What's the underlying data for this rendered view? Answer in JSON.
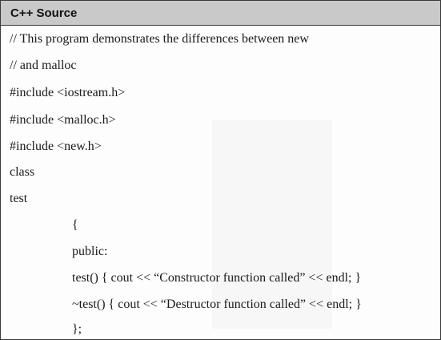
{
  "header": {
    "title": "C++ Source"
  },
  "code": {
    "lines": [
      "// This program demonstrates the differences between new",
      "// and malloc",
      "#include <iostream.h>",
      "#include <malloc.h>",
      "#include <new.h>",
      "class",
      "test",
      "{",
      "public:",
      "test() { cout << “Constructor function called” << endl; }",
      "~test() { cout << “Destructor function called” << endl; }",
      "};"
    ]
  }
}
